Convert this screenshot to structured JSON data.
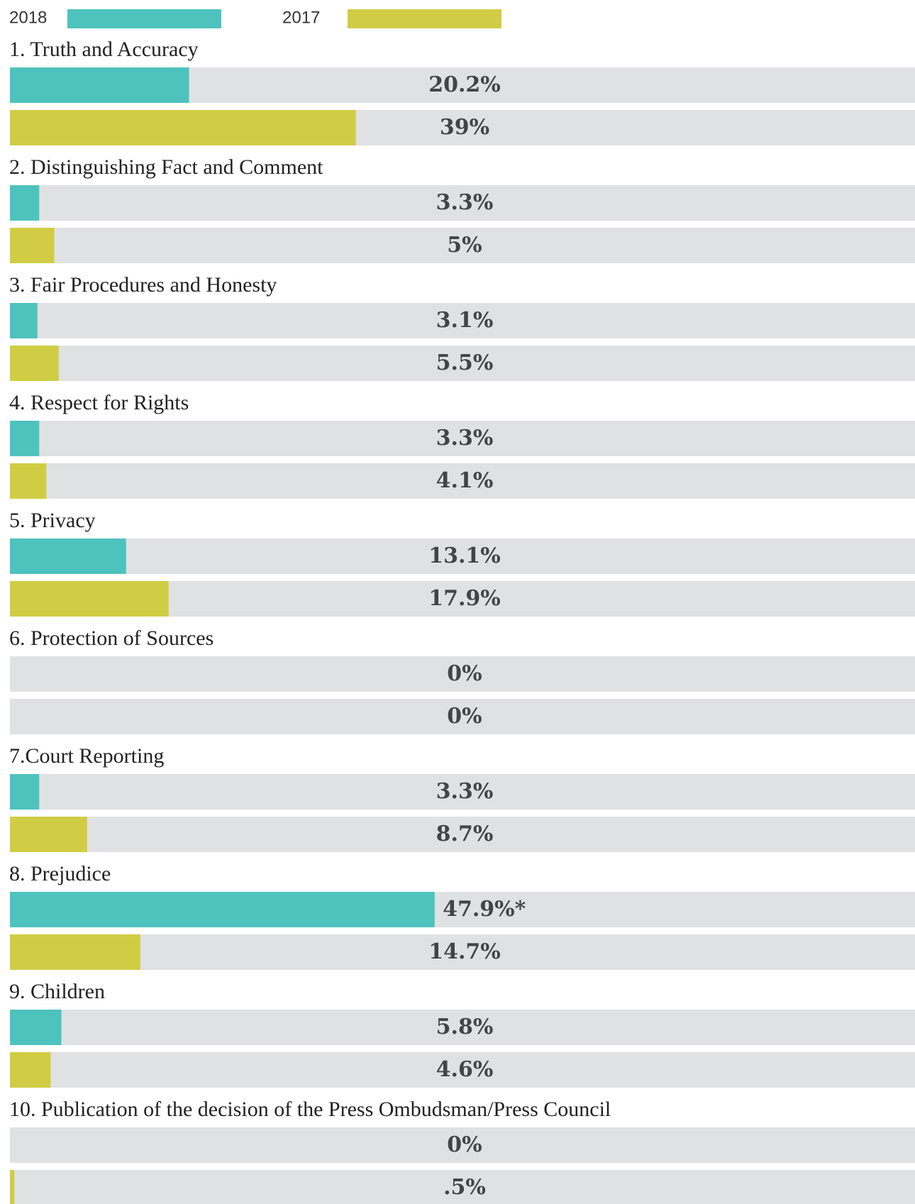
{
  "chart_data": {
    "type": "bar",
    "categories": [
      "1. Truth and Accuracy",
      "2. Distinguishing Fact and Comment",
      "3. Fair Procedures and Honesty",
      "4. Respect for Rights",
      "5. Privacy",
      "6. Protection of Sources",
      "7.Court Reporting",
      "8. Prejudice",
      "9. Children",
      "10. Publication of the decision of the Press Ombudsman/Press Council"
    ],
    "series": [
      {
        "name": "2018",
        "color": "#4ec3be",
        "values": [
          20.2,
          3.3,
          3.1,
          3.3,
          13.1,
          0,
          3.3,
          47.9,
          5.8,
          0
        ],
        "value_labels": [
          "20.2%",
          "3.3%",
          "3.1%",
          "3.3%",
          "13.1%",
          "0%",
          "3.3%",
          "47.9%*",
          "5.8%",
          "0%"
        ]
      },
      {
        "name": "2017",
        "color": "#d0cd45",
        "values": [
          39,
          5,
          5.5,
          4.1,
          17.9,
          0,
          8.7,
          14.7,
          4.6,
          0.5
        ],
        "value_labels": [
          "39%",
          "5%",
          "5.5%",
          "4.1%",
          "17.9%",
          "0%",
          "8.7%",
          "14.7%",
          "4.6%",
          ".5%"
        ]
      }
    ],
    "xlim": [
      0,
      100
    ]
  }
}
